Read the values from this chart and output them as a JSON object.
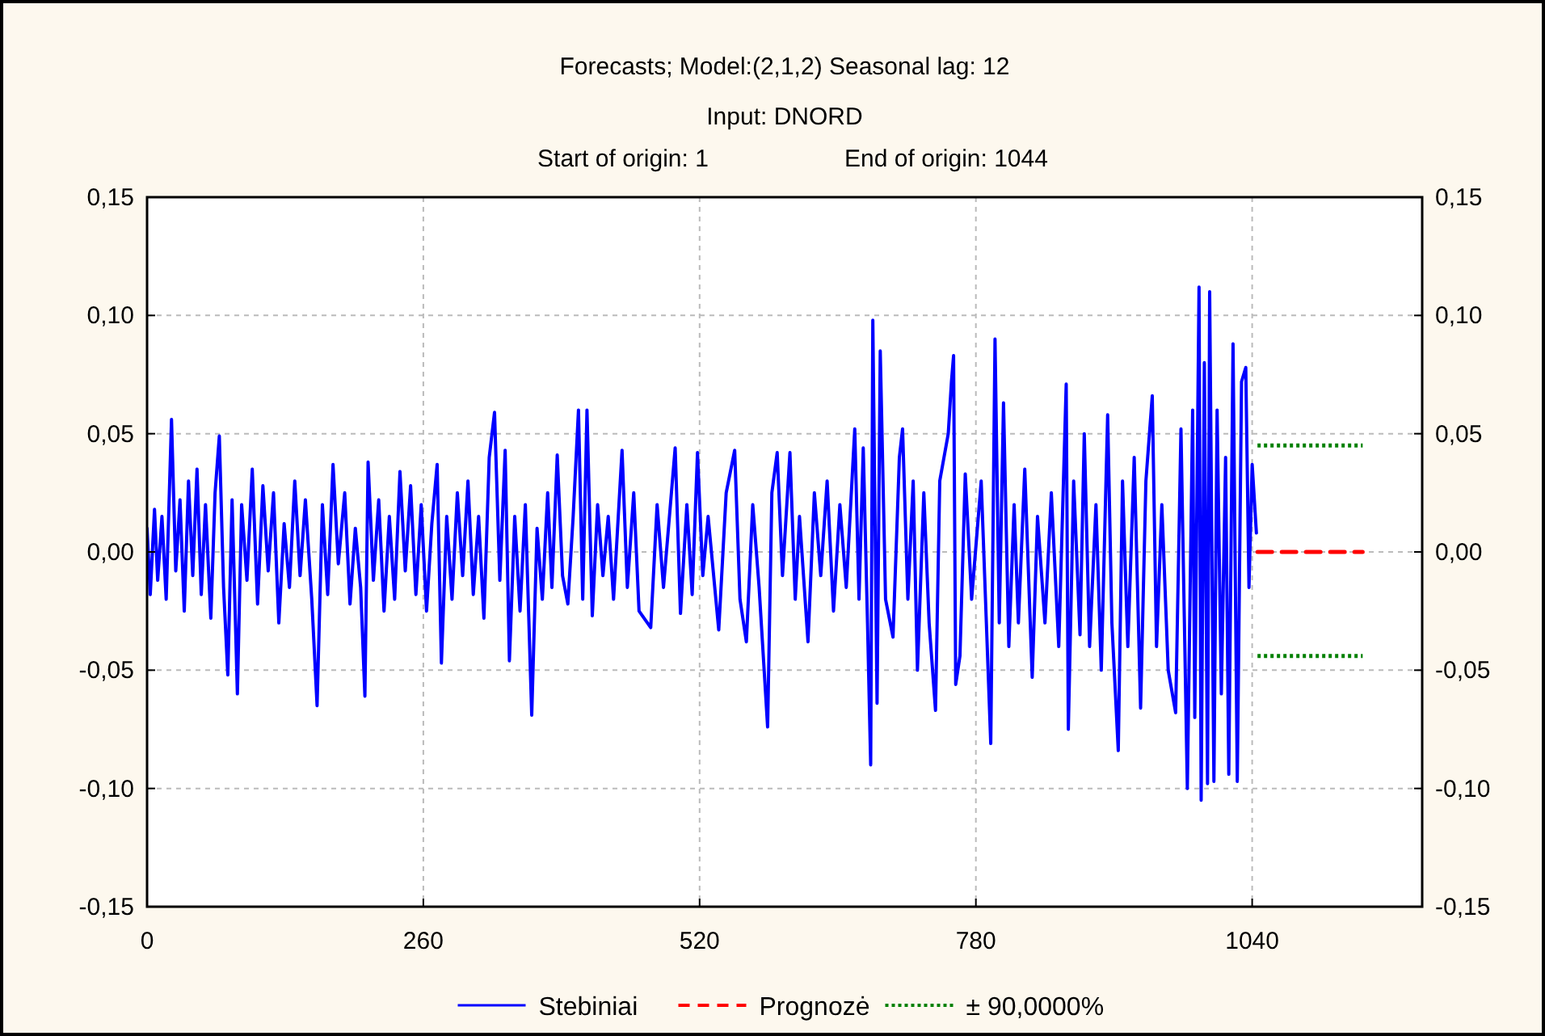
{
  "chart_data": {
    "type": "line",
    "title": "Forecasts; Model:(2,1,2) Seasonal lag: 12",
    "subtitle": "Input: DNORD",
    "annotations": [
      "Start of origin: 1",
      "End of origin: 1044"
    ],
    "xlim": [
      0,
      1200
    ],
    "xticks": [
      0,
      260,
      520,
      780,
      1040
    ],
    "ylim": [
      -0.15,
      0.15
    ],
    "yticks": [
      {
        "value": -0.15,
        "label": "-0,15"
      },
      {
        "value": -0.1,
        "label": "-0,10"
      },
      {
        "value": -0.05,
        "label": "-0,05"
      },
      {
        "value": 0,
        "label": "0,00"
      },
      {
        "value": 0.05,
        "label": "0,05"
      },
      {
        "value": 0.1,
        "label": "0,10"
      },
      {
        "value": 0.15,
        "label": "0,15"
      }
    ],
    "y2lim": [
      -0.15,
      0.15
    ],
    "y2ticks": [
      {
        "value": -0.15,
        "label": "-0,15"
      },
      {
        "value": -0.1,
        "label": "-0,10"
      },
      {
        "value": -0.05,
        "label": "-0,05"
      },
      {
        "value": 0,
        "label": "0,00"
      },
      {
        "value": 0.05,
        "label": "0,05"
      },
      {
        "value": 0.1,
        "label": "0,10"
      },
      {
        "value": 0.15,
        "label": "0,15"
      }
    ],
    "grid": true,
    "legend": "bottom",
    "marker": "none",
    "series": [
      {
        "name": "Stebiniai",
        "color": "#0000ff",
        "line_style": "solid",
        "x": [
          0,
          3,
          7,
          10,
          14,
          18,
          23,
          27,
          31,
          35,
          39,
          43,
          47,
          51,
          55,
          60,
          64,
          68,
          72,
          76,
          80,
          85,
          89,
          94,
          99,
          104,
          109,
          114,
          119,
          124,
          129,
          134,
          139,
          144,
          149,
          155,
          160,
          165,
          170,
          175,
          180,
          186,
          191,
          196,
          201,
          205,
          208,
          213,
          218,
          223,
          228,
          233,
          238,
          243,
          248,
          253,
          258,
          263,
          268,
          273,
          277,
          282,
          287,
          292,
          297,
          302,
          307,
          312,
          317,
          322,
          327,
          332,
          337,
          341,
          346,
          351,
          356,
          362,
          367,
          372,
          377,
          381,
          386,
          391,
          396,
          401,
          406,
          410,
          414,
          419,
          424,
          429,
          434,
          439,
          447,
          452,
          458,
          463,
          474,
          480,
          486,
          497,
          502,
          508,
          513,
          518,
          523,
          528,
          538,
          545,
          553,
          558,
          564,
          570,
          576,
          584,
          588,
          593,
          598,
          605,
          610,
          614,
          622,
          628,
          634,
          640,
          646,
          652,
          658,
          666,
          670,
          674,
          678,
          681,
          683,
          687,
          690,
          695,
          702,
          708,
          711,
          716,
          721,
          725,
          731,
          736,
          742,
          746,
          754,
          757,
          759,
          761,
          765,
          770,
          776,
          785,
          794,
          798,
          802,
          806,
          811,
          816,
          820,
          826,
          833,
          838,
          845,
          851,
          858,
          865,
          867,
          872,
          878,
          882,
          887,
          893,
          898,
          904,
          908,
          914,
          918,
          923,
          929,
          935,
          940,
          946,
          950,
          955,
          961,
          968,
          973,
          979,
          984,
          986,
          990,
          992,
          995,
          998,
          1000,
          1004,
          1007,
          1011,
          1015,
          1018,
          1022,
          1026,
          1030,
          1034,
          1037,
          1040,
          1044
        ],
        "values": [
          0.01,
          -0.018,
          0.018,
          -0.012,
          0.015,
          -0.02,
          0.056,
          -0.008,
          0.022,
          -0.025,
          0.03,
          -0.01,
          0.035,
          -0.018,
          0.02,
          -0.028,
          0.025,
          0.049,
          -0.015,
          -0.052,
          0.022,
          -0.06,
          0.02,
          -0.012,
          0.035,
          -0.022,
          0.028,
          -0.008,
          0.025,
          -0.03,
          0.012,
          -0.015,
          0.03,
          -0.01,
          0.022,
          -0.02,
          -0.065,
          0.02,
          -0.018,
          0.037,
          -0.005,
          0.025,
          -0.022,
          0.01,
          -0.015,
          -0.061,
          0.038,
          -0.012,
          0.022,
          -0.025,
          0.015,
          -0.02,
          0.034,
          -0.008,
          0.028,
          -0.018,
          0.02,
          -0.025,
          0.012,
          0.037,
          -0.047,
          0.015,
          -0.02,
          0.025,
          -0.01,
          0.03,
          -0.018,
          0.015,
          -0.028,
          0.04,
          0.059,
          -0.012,
          0.043,
          -0.046,
          0.015,
          -0.025,
          0.02,
          -0.069,
          0.01,
          -0.02,
          0.025,
          -0.015,
          0.041,
          -0.01,
          -0.022,
          0.015,
          0.06,
          -0.02,
          0.06,
          -0.027,
          0.02,
          -0.01,
          0.015,
          -0.02,
          0.043,
          -0.015,
          0.025,
          -0.025,
          -0.032,
          0.02,
          -0.015,
          0.044,
          -0.026,
          0.02,
          -0.018,
          0.042,
          -0.01,
          0.015,
          -0.033,
          0.025,
          0.043,
          -0.02,
          -0.038,
          0.02,
          -0.015,
          -0.074,
          0.025,
          0.042,
          -0.01,
          0.042,
          -0.02,
          0.015,
          -0.038,
          0.025,
          -0.01,
          0.03,
          -0.025,
          0.02,
          -0.015,
          0.052,
          -0.02,
          0.044,
          -0.03,
          -0.09,
          0.098,
          -0.064,
          0.085,
          -0.02,
          -0.036,
          0.04,
          0.052,
          -0.02,
          0.03,
          -0.05,
          0.025,
          -0.03,
          -0.067,
          0.03,
          0.05,
          0.072,
          0.083,
          -0.056,
          -0.044,
          0.033,
          -0.02,
          0.03,
          -0.081,
          0.09,
          -0.03,
          0.063,
          -0.04,
          0.02,
          -0.03,
          0.035,
          -0.053,
          0.015,
          -0.03,
          0.025,
          -0.04,
          0.071,
          -0.075,
          0.03,
          -0.035,
          0.05,
          -0.04,
          0.02,
          -0.05,
          0.058,
          -0.03,
          -0.084,
          0.03,
          -0.04,
          0.04,
          -0.066,
          0.03,
          0.066,
          -0.04,
          0.02,
          -0.05,
          -0.068,
          0.052,
          -0.1,
          0.06,
          -0.07,
          0.112,
          -0.105,
          0.08,
          -0.098,
          0.11,
          -0.097,
          0.06,
          -0.06,
          0.04,
          -0.094,
          0.088,
          -0.097,
          0.072,
          0.078,
          -0.015,
          0.037,
          0.008
        ]
      },
      {
        "name": "Prognozė",
        "color": "#ff0000",
        "line_style": "dashed",
        "x": [
          1045,
          1144
        ],
        "values": [
          0,
          0
        ]
      },
      {
        "name": "± 90,0000%",
        "color": "#008000",
        "line_style": "dotted",
        "x": [
          1045,
          1144
        ],
        "values": [
          0.045,
          0.045
        ]
      },
      {
        "color": "#008000",
        "line_style": "dotted",
        "x": [
          1045,
          1144
        ],
        "values": [
          -0.044,
          -0.044
        ]
      }
    ]
  }
}
